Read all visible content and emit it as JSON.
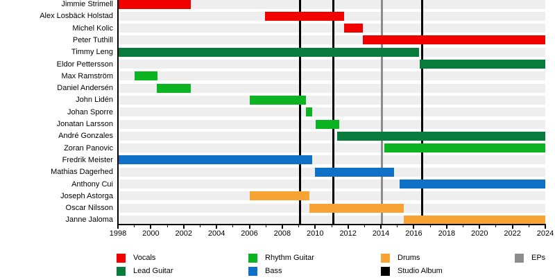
{
  "chart_data": {
    "type": "gantt",
    "description": "Band members timeline (membership periods by instrument, with studio album and EP release markers)",
    "x_axis": {
      "min": 1998,
      "max": 2024,
      "tick_step": 2,
      "minor_tick_step": 1,
      "tick_labels": [
        "1998",
        "2000",
        "2002",
        "2004",
        "2006",
        "2008",
        "2010",
        "2012",
        "2014",
        "2016",
        "2018",
        "2020",
        "2022",
        "2024"
      ]
    },
    "members": [
      {
        "name": "Jimmie Strimell",
        "role": "Vocals",
        "start": 1998,
        "end": 2002.45
      },
      {
        "name": "Alex Losbäck Holstad",
        "role": "Vocals",
        "start": 2006.95,
        "end": 2011.75
      },
      {
        "name": "Michel Kolic",
        "role": "Vocals",
        "start": 2011.75,
        "end": 2012.9
      },
      {
        "name": "Peter Tuthill",
        "role": "Vocals",
        "start": 2012.9,
        "end": 2024
      },
      {
        "name": "Timmy Leng",
        "role": "Lead Guitar",
        "start": 1998,
        "end": 2016.3
      },
      {
        "name": "Eldor Pettersson",
        "role": "Lead Guitar",
        "start": 2016.35,
        "end": 2024
      },
      {
        "name": "Max Ramström",
        "role": "Rhythm Guitar",
        "start": 1999,
        "end": 2000.4
      },
      {
        "name": "Daniel Andersén",
        "role": "Rhythm Guitar",
        "start": 2000.35,
        "end": 2002.45
      },
      {
        "name": "John Lidén",
        "role": "Rhythm Guitar",
        "start": 2006,
        "end": 2009.45
      },
      {
        "name": "Johan Sporre",
        "role": "Rhythm Guitar",
        "start": 2009.45,
        "end": 2009.8
      },
      {
        "name": "Jonatan Larsson",
        "role": "Rhythm Guitar",
        "start": 2010.05,
        "end": 2011.45
      },
      {
        "name": "André Gonzales",
        "role": "Lead Guitar",
        "start": 2011.35,
        "end": 2024
      },
      {
        "name": "Zoran Panovic",
        "role": "Rhythm Guitar",
        "start": 2014.2,
        "end": 2024
      },
      {
        "name": "Fredrik Meister",
        "role": "Bass",
        "start": 1998,
        "end": 2009.8
      },
      {
        "name": "Mathias Dagerhed",
        "role": "Bass",
        "start": 2010,
        "end": 2014.8
      },
      {
        "name": "Anthony Cui",
        "role": "Bass",
        "start": 2015.15,
        "end": 2024
      },
      {
        "name": "Joseph Astorga",
        "role": "Drums",
        "start": 2006,
        "end": 2009.65
      },
      {
        "name": "Oscar Nilsson",
        "role": "Drums",
        "start": 2009.65,
        "end": 2015.4
      },
      {
        "name": "Janne Jaloma",
        "role": "Drums",
        "start": 2015.4,
        "end": 2024
      }
    ],
    "events": {
      "studio_albums": [
        2009.1,
        2011.1,
        2016.5
      ],
      "eps": [
        2014.05
      ]
    },
    "legend": [
      {
        "label": "Vocals",
        "color": "#f20000"
      },
      {
        "label": "Lead Guitar",
        "color": "#077c3c"
      },
      {
        "label": "Rhythm Guitar",
        "color": "#0db422"
      },
      {
        "label": "Bass",
        "color": "#0f70c8"
      },
      {
        "label": "Drums",
        "color": "#f8a434"
      },
      {
        "label": "Studio Album",
        "color": "#000000"
      },
      {
        "label": "EPs",
        "color": "#8c8c8c"
      }
    ],
    "colors": {
      "row_stripe": "#eeeeee",
      "axis": "#000000"
    }
  }
}
